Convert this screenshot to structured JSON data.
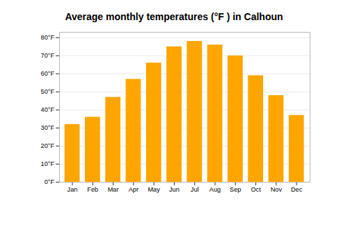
{
  "chart_data": {
    "type": "bar",
    "title": "Average monthly temperatures (°F ) in Calhoun",
    "categories": [
      "Jan",
      "Feb",
      "Mar",
      "Apr",
      "May",
      "Jun",
      "Jul",
      "Aug",
      "Sep",
      "Oct",
      "Nov",
      "Dec"
    ],
    "values": [
      32,
      36,
      47,
      57,
      66,
      75,
      78,
      76,
      70,
      59,
      48,
      37
    ],
    "color": "#FFA500",
    "ylim": [
      0,
      83
    ],
    "yticks": [
      {
        "value": 0,
        "label": "0°F"
      },
      {
        "value": 10,
        "label": "10°F"
      },
      {
        "value": 20,
        "label": "20°F"
      },
      {
        "value": 30,
        "label": "30°F"
      },
      {
        "value": 40,
        "label": "40°F"
      },
      {
        "value": 50,
        "label": "50°F"
      },
      {
        "value": 60,
        "label": "60°F"
      },
      {
        "value": 70,
        "label": "70°F"
      },
      {
        "value": 80,
        "label": "80°F"
      }
    ],
    "grid": true
  }
}
